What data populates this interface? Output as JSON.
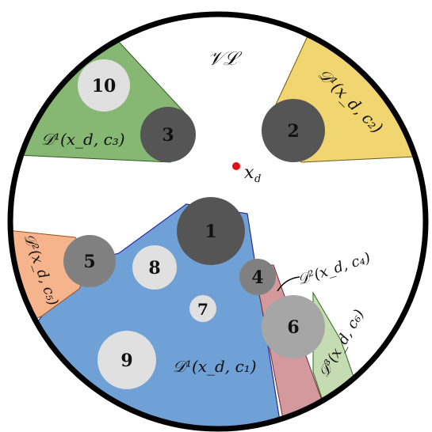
{
  "labels": {
    "vl": "𝒱ℒ",
    "xd": "x",
    "xd_sub": "d",
    "region_green": "𝒟¹(x_d, c₃)",
    "region_yellow": "𝒟¹(x_d, c₂)",
    "region_blue": "𝒟¹(x_d, c₁)",
    "region_orange": "𝒟²(x_d, c₅)",
    "region_red": "𝒟²(x_d, c₄)",
    "region_lightgreen": "𝒟³(x_d, c₆)"
  },
  "nodes": {
    "n1": "1",
    "n2": "2",
    "n3": "3",
    "n4": "4",
    "n5": "5",
    "n6": "6",
    "n7": "7",
    "n8": "8",
    "n9": "9",
    "n10": "10"
  },
  "colors": {
    "green_region": "#86b874",
    "yellow_region": "#f0d570",
    "blue_region": "#6fa0d6",
    "orange_region": "#f6b48c",
    "red_region": "#d3999d",
    "lightgreen_region": "#c5dcb2",
    "dark_obstacle": "#555555",
    "mid_obstacle": "#808080",
    "light_obstacle": "#a6a6a6",
    "pale_obstacle": "#e0e0e0",
    "query_point": "#e01010"
  }
}
